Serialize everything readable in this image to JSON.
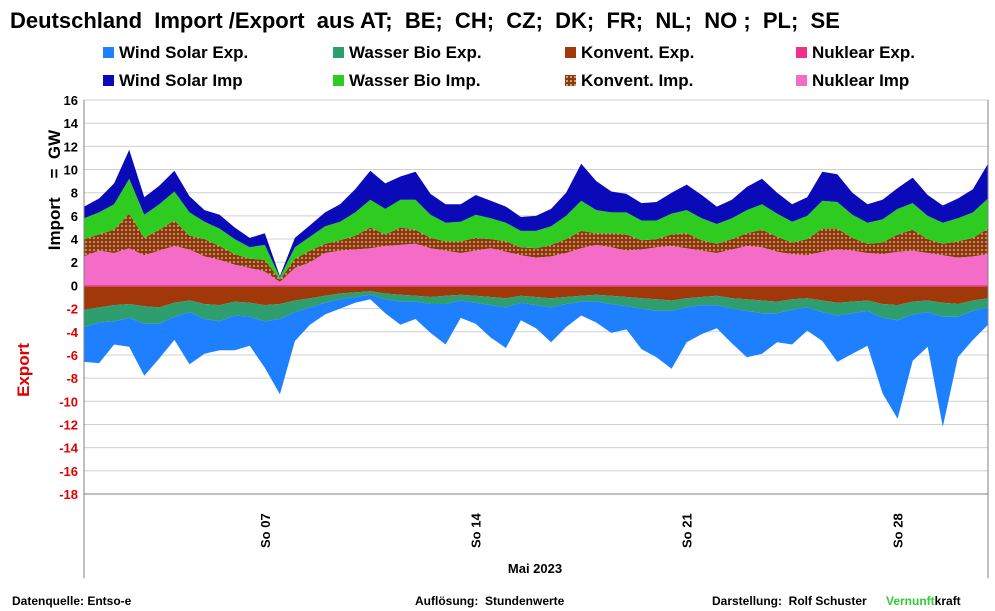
{
  "title": "Deutschland  Import /Export  aus AT;  BE;  CH;  CZ;  DK;  FR;  NL;  NO ;  PL;  SE",
  "legend": [
    {
      "label": "Wind Solar Exp.",
      "color": "#1e7fff"
    },
    {
      "label": "Wasser Bio Exp.",
      "color": "#2e9e6e"
    },
    {
      "label": "Konvent. Exp.",
      "color": "#a0380a"
    },
    {
      "label": "Nuklear Exp.",
      "color": "#f0308a"
    },
    {
      "label": "Wind Solar Imp",
      "color": "#0a0ab8"
    },
    {
      "label": "Wasser Bio Imp.",
      "color": "#2ecc20"
    },
    {
      "label": "Konvent. Imp.",
      "color": "#8b3a10"
    },
    {
      "label": "Nuklear Imp",
      "color": "#f56cc8"
    }
  ],
  "ylabel_import": "Import    =  GW",
  "ylabel_export": "Export",
  "xlabel": "Mai 2023",
  "footer": {
    "source": "Datenquelle: Entso-e",
    "resolution": "Auflösung:  Stundenwerte",
    "author": "Darstellung:  Rolf Schuster",
    "brand_a": "Vernunft",
    "brand_b": "kraft"
  },
  "chart_data": {
    "type": "area",
    "x_unit": "day of May 2023",
    "x_range": [
      1,
      31
    ],
    "ylim": [
      -18,
      16
    ],
    "yticks": [
      16,
      14,
      12,
      10,
      8,
      6,
      4,
      2,
      0,
      -2,
      -4,
      -6,
      -8,
      -10,
      -12,
      -14,
      -16,
      -18
    ],
    "xtick_labels": [
      {
        "x": 7,
        "label": "So 07"
      },
      {
        "x": 14,
        "label": "So 14"
      },
      {
        "x": 21,
        "label": "So 21"
      },
      {
        "x": 28,
        "label": "So 28"
      }
    ],
    "grid": "horizontal",
    "x": [
      1,
      1.5,
      2,
      2.5,
      3,
      3.5,
      4,
      4.5,
      5,
      5.5,
      6,
      6.5,
      7,
      7.5,
      8,
      8.5,
      9,
      9.5,
      10,
      10.5,
      11,
      11.5,
      12,
      12.5,
      13,
      13.5,
      14,
      14.5,
      15,
      15.5,
      16,
      16.5,
      17,
      17.5,
      18,
      18.5,
      19,
      19.5,
      20,
      20.5,
      21,
      21.5,
      22,
      22.5,
      23,
      23.5,
      24,
      24.5,
      25,
      25.5,
      26,
      26.5,
      27,
      27.5,
      28,
      28.5,
      29,
      29.5,
      30,
      30.5,
      31
    ],
    "import_series": [
      {
        "name": "Nuklear Imp",
        "values": [
          2.5,
          3.0,
          2.8,
          3.2,
          2.6,
          3.0,
          3.4,
          3.1,
          2.5,
          2.2,
          1.8,
          1.5,
          1.2,
          0.3,
          1.5,
          2.0,
          2.8,
          3.0,
          3.1,
          3.2,
          3.4,
          3.5,
          3.6,
          3.2,
          3.0,
          2.8,
          3.0,
          3.2,
          2.9,
          2.6,
          2.4,
          2.5,
          2.8,
          3.2,
          3.5,
          3.3,
          3.0,
          3.1,
          3.3,
          3.4,
          3.2,
          3.0,
          2.8,
          3.1,
          3.4,
          3.3,
          2.9,
          2.7,
          2.6,
          2.9,
          3.1,
          3.0,
          2.8,
          2.7,
          2.9,
          3.0,
          2.8,
          2.6,
          2.4,
          2.5,
          2.7
        ]
      },
      {
        "name": "Konvent. Imp.",
        "values": [
          1.5,
          1.4,
          2.0,
          3.0,
          1.5,
          1.8,
          2.2,
          1.2,
          1.5,
          1.2,
          0.9,
          0.8,
          1.0,
          0.2,
          0.8,
          1.0,
          0.8,
          0.9,
          1.2,
          1.8,
          1.0,
          1.5,
          1.2,
          0.9,
          0.8,
          1.0,
          1.1,
          0.8,
          0.9,
          0.7,
          0.8,
          1.0,
          1.2,
          1.5,
          1.0,
          1.2,
          1.4,
          0.8,
          0.7,
          1.0,
          1.3,
          0.9,
          0.8,
          0.9,
          1.1,
          1.5,
          1.3,
          1.0,
          1.4,
          2.0,
          1.8,
          1.1,
          0.8,
          1.0,
          1.5,
          1.8,
          1.2,
          1.0,
          1.4,
          1.6,
          2.2
        ]
      },
      {
        "name": "Wasser Bio Imp.",
        "values": [
          1.8,
          1.9,
          2.2,
          3.0,
          2.0,
          2.2,
          2.5,
          2.0,
          1.5,
          1.5,
          1.3,
          1.0,
          1.3,
          0.2,
          1.0,
          1.2,
          1.5,
          1.6,
          2.0,
          2.4,
          2.2,
          2.4,
          2.6,
          2.0,
          1.6,
          1.7,
          2.0,
          1.8,
          1.6,
          1.4,
          1.5,
          1.6,
          2.0,
          2.6,
          2.0,
          1.8,
          1.9,
          1.7,
          1.6,
          1.8,
          2.0,
          1.9,
          1.7,
          1.8,
          2.0,
          2.2,
          2.0,
          1.8,
          2.0,
          2.4,
          2.3,
          2.0,
          1.8,
          2.0,
          2.2,
          2.3,
          2.0,
          1.8,
          2.0,
          2.2,
          2.6
        ]
      },
      {
        "name": "Wind Solar Imp",
        "values": [
          1.0,
          1.2,
          1.8,
          2.5,
          1.5,
          1.6,
          1.8,
          1.4,
          1.0,
          1.2,
          1.0,
          0.8,
          1.0,
          0.1,
          0.8,
          1.0,
          1.2,
          1.5,
          2.0,
          2.5,
          2.2,
          2.0,
          2.4,
          1.8,
          1.6,
          1.5,
          1.7,
          1.5,
          1.4,
          1.2,
          1.3,
          1.5,
          2.0,
          3.2,
          2.5,
          1.8,
          1.6,
          1.5,
          1.6,
          1.8,
          2.2,
          2.0,
          1.5,
          1.6,
          2.0,
          2.2,
          1.8,
          1.5,
          1.6,
          2.5,
          2.4,
          1.9,
          1.6,
          1.7,
          1.8,
          2.2,
          1.8,
          1.5,
          1.7,
          2.0,
          3.0
        ]
      }
    ],
    "export_series": [
      {
        "name": "Nuklear Exp.",
        "values": [
          0.1,
          0.1,
          0.1,
          0.1,
          0.1,
          0.1,
          0.1,
          0.1,
          0.1,
          0.1,
          0.1,
          0.1,
          0.1,
          0.1,
          0.1,
          0.1,
          0.1,
          0.1,
          0.1,
          0.1,
          0.1,
          0.1,
          0.1,
          0.1,
          0.1,
          0.1,
          0.1,
          0.1,
          0.1,
          0.1,
          0.1,
          0.1,
          0.1,
          0.1,
          0.1,
          0.1,
          0.1,
          0.1,
          0.1,
          0.1,
          0.1,
          0.1,
          0.1,
          0.1,
          0.1,
          0.1,
          0.1,
          0.1,
          0.1,
          0.1,
          0.1,
          0.1,
          0.1,
          0.1,
          0.1,
          0.1,
          0.1,
          0.1,
          0.1,
          0.1,
          0.1
        ]
      },
      {
        "name": "Konvent. Exp.",
        "values": [
          2.0,
          1.8,
          1.6,
          1.5,
          1.7,
          1.8,
          1.4,
          1.2,
          1.5,
          1.6,
          1.3,
          1.4,
          1.6,
          1.5,
          1.2,
          1.0,
          0.8,
          0.6,
          0.5,
          0.4,
          0.6,
          0.7,
          0.8,
          0.9,
          0.8,
          0.7,
          0.8,
          0.9,
          1.0,
          0.8,
          0.9,
          1.0,
          0.9,
          0.8,
          0.7,
          0.8,
          0.9,
          1.0,
          1.1,
          1.2,
          1.0,
          0.9,
          0.8,
          1.0,
          1.1,
          1.2,
          1.3,
          1.1,
          1.0,
          1.2,
          1.4,
          1.3,
          1.2,
          1.5,
          1.6,
          1.3,
          1.2,
          1.4,
          1.5,
          1.2,
          1.0
        ]
      },
      {
        "name": "Wasser Bio Exp.",
        "values": [
          1.5,
          1.3,
          1.4,
          1.2,
          1.5,
          1.4,
          1.2,
          1.0,
          1.3,
          1.4,
          1.2,
          1.2,
          1.4,
          1.3,
          1.0,
          0.8,
          0.6,
          0.5,
          0.4,
          0.3,
          0.5,
          0.6,
          0.5,
          0.6,
          0.7,
          0.5,
          0.6,
          0.7,
          0.8,
          0.6,
          0.7,
          0.8,
          0.6,
          0.5,
          0.6,
          0.7,
          0.8,
          0.9,
          1.0,
          0.9,
          0.8,
          0.7,
          0.8,
          0.9,
          1.0,
          1.1,
          1.0,
          0.9,
          0.8,
          1.0,
          1.1,
          1.0,
          0.9,
          1.2,
          1.3,
          1.1,
          1.0,
          1.2,
          1.1,
          0.9,
          0.8
        ]
      },
      {
        "name": "Wind Solar Exp.",
        "values": [
          3.0,
          3.5,
          2.0,
          2.5,
          4.5,
          3.0,
          2.0,
          4.5,
          3.0,
          2.5,
          3.0,
          2.5,
          4.0,
          6.5,
          2.5,
          1.5,
          1.0,
          0.8,
          0.5,
          0.4,
          1.2,
          2.0,
          1.5,
          2.5,
          3.5,
          1.5,
          1.8,
          2.8,
          3.5,
          1.5,
          2.0,
          3.0,
          2.0,
          1.2,
          1.8,
          2.5,
          2.0,
          3.5,
          4.0,
          5.0,
          3.0,
          2.5,
          2.0,
          3.0,
          4.0,
          3.5,
          2.5,
          3.0,
          2.0,
          2.5,
          4.0,
          3.5,
          3.0,
          6.5,
          8.5,
          4.0,
          3.0,
          9.5,
          3.5,
          2.5,
          1.5
        ]
      }
    ]
  }
}
